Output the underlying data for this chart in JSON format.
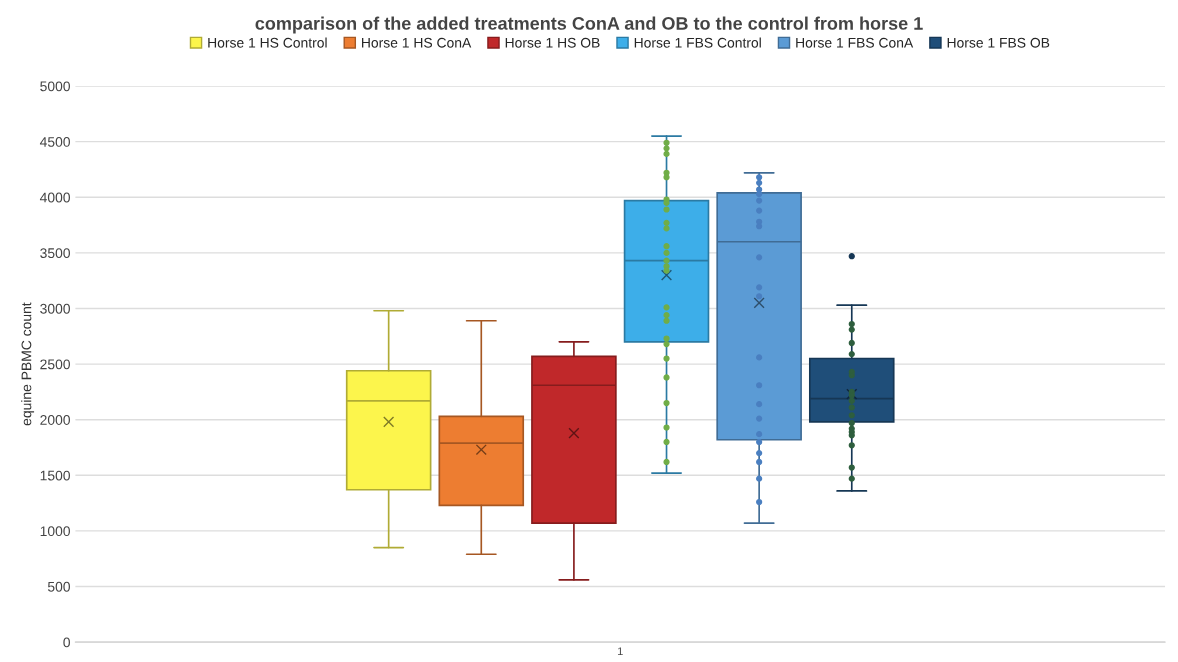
{
  "chart_data": {
    "type": "box",
    "title": "comparison of the added treatments ConA and OB to the control from horse 1",
    "ylabel": "equine PBMC count",
    "categories": [
      "1"
    ],
    "ylim": [
      0,
      5000
    ],
    "yticks": [
      0,
      500,
      1000,
      1500,
      2000,
      2500,
      3000,
      3500,
      4000,
      4500,
      5000
    ],
    "grid": "y",
    "legend": "top",
    "series": [
      {
        "name": "Horse 1 HS Control",
        "color": "#fcf54c",
        "boxes": [
          {
            "low": 850,
            "q1": 1370,
            "median": 2170,
            "q3": 2440,
            "high": 2980,
            "mean": 1980
          }
        ]
      },
      {
        "name": "Horse 1 HS ConA",
        "color": "#ed7d31",
        "boxes": [
          {
            "low": 790,
            "q1": 1230,
            "median": 1790,
            "q3": 2030,
            "high": 2890,
            "mean": 1730
          }
        ]
      },
      {
        "name": "Horse 1 HS OB",
        "color": "#c0282a",
        "boxes": [
          {
            "low": 560,
            "q1": 1070,
            "median": 2310,
            "q3": 2570,
            "high": 2700,
            "mean": 1880
          }
        ]
      },
      {
        "name": "Horse 1 FBS Control",
        "color": "#3daee9",
        "boxes": [
          {
            "low": 1520,
            "q1": 2700,
            "median": 3430,
            "q3": 3970,
            "high": 4550,
            "mean": 3300
          }
        ]
      },
      {
        "type": "scatter",
        "color": "#70ad47",
        "x": [
          "1",
          "1",
          "1",
          "1",
          "1",
          "1",
          "1",
          "1",
          "1",
          "1",
          "1",
          "1",
          "1",
          "1",
          "1",
          "1",
          "1",
          "1",
          "1",
          "1",
          "1",
          "1",
          "1",
          "1",
          "1",
          "1"
        ],
        "values": [
          4490,
          4440,
          4390,
          4220,
          4180,
          3980,
          3950,
          3890,
          3770,
          3720,
          3560,
          3500,
          3430,
          3380,
          3340,
          3010,
          2940,
          2890,
          2730,
          2680,
          2550,
          2380,
          2150,
          1930,
          1800,
          1620
        ]
      },
      {
        "name": "Horse 1 FBS ConA",
        "color": "#5b9bd5",
        "boxes": [
          {
            "low": 1070,
            "q1": 1820,
            "median": 3600,
            "q3": 4040,
            "high": 4220,
            "mean": 3050
          }
        ]
      },
      {
        "type": "scatter",
        "color": "#4a7fc0",
        "x": [
          "1",
          "1",
          "1",
          "1",
          "1",
          "1",
          "1",
          "1",
          "1",
          "1",
          "1",
          "1",
          "1",
          "1",
          "1",
          "1",
          "1",
          "1",
          "1",
          "1",
          "1"
        ],
        "values": [
          4180,
          4130,
          4070,
          4030,
          3970,
          3880,
          3780,
          3740,
          3460,
          3190,
          3110,
          2560,
          2310,
          2140,
          2010,
          1870,
          1800,
          1700,
          1620,
          1470,
          1260
        ]
      },
      {
        "name": "Horse 1 FBS OB",
        "color": "#1f4e79",
        "boxes": [
          {
            "low": 1360,
            "q1": 1980,
            "median": 2190,
            "q3": 2550,
            "high": 3030,
            "mean": 2230,
            "outliers": [
              3470
            ]
          }
        ]
      },
      {
        "type": "scatter",
        "color": "#2e5e3e",
        "x": [
          "1",
          "1",
          "1",
          "1",
          "1",
          "1",
          "1",
          "1",
          "1",
          "1",
          "1",
          "1",
          "1",
          "1",
          "1",
          "1",
          "1",
          "1"
        ],
        "values": [
          2860,
          2810,
          2690,
          2590,
          2430,
          2400,
          2250,
          2220,
          2170,
          2110,
          2040,
          1970,
          1920,
          1890,
          1860,
          1770,
          1570,
          1470
        ]
      }
    ]
  }
}
